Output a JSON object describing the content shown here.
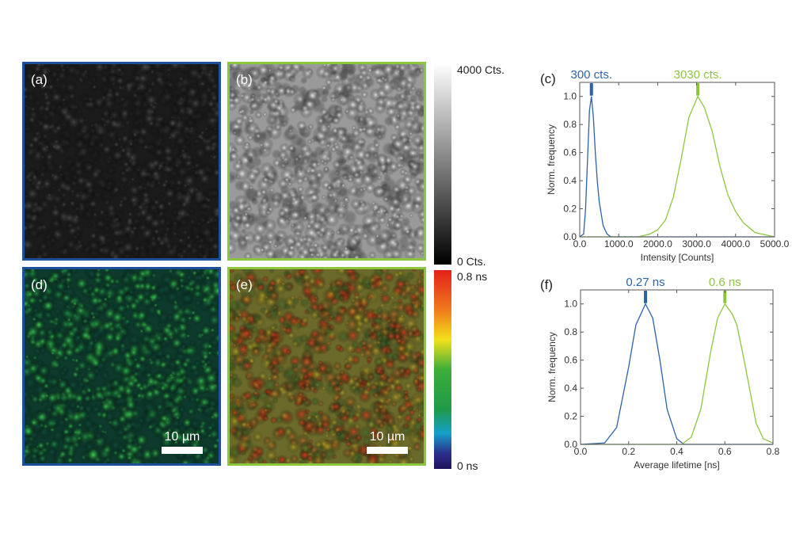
{
  "panels": {
    "a": {
      "label": "(a)"
    },
    "b": {
      "label": "(b)"
    },
    "d": {
      "label": "(d)",
      "scale_bar": "10 µm"
    },
    "e": {
      "label": "(e)",
      "scale_bar": "10 µm"
    }
  },
  "colorbars": {
    "intensity": {
      "max_label": "4000 Cts.",
      "min_label": "0 Cts."
    },
    "lifetime": {
      "max_label": "0.8 ns",
      "min_label": "0 ns"
    }
  },
  "colors": {
    "blue": "#2c62ad",
    "green": "#8cc63f",
    "blue_frame": "#1d4f9c",
    "green_frame": "#8cc63f"
  },
  "chart_data": [
    {
      "id": "c",
      "panel_label": "(c)",
      "type": "line",
      "xlabel": "Intensity [Counts]",
      "ylabel": "Norm. frequency",
      "xlim": [
        0,
        5000
      ],
      "ylim": [
        0,
        1.1
      ],
      "xticks": [
        "0.0",
        "1000.0",
        "2000.0",
        "3000.0",
        "4000.0",
        "5000.0"
      ],
      "xtick_values": [
        0,
        1000,
        2000,
        3000,
        4000,
        5000
      ],
      "yticks": [
        "0.0",
        "0.2",
        "0.4",
        "0.6",
        "0.8",
        "1.0"
      ],
      "ytick_values": [
        0,
        0.2,
        0.4,
        0.6,
        0.8,
        1.0
      ],
      "series": [
        {
          "name": "blue",
          "color": "#2c62ad",
          "peak_label": "300 cts.",
          "peak": 300,
          "x": [
            0,
            100,
            150,
            200,
            250,
            300,
            350,
            400,
            450,
            500,
            600,
            700,
            800,
            1000,
            5000
          ],
          "y": [
            0,
            0.02,
            0.2,
            0.55,
            0.9,
            1.0,
            0.85,
            0.6,
            0.4,
            0.25,
            0.08,
            0.02,
            0,
            0,
            0
          ]
        },
        {
          "name": "green",
          "color": "#8cc63f",
          "peak_label": "3030 cts.",
          "peak": 3030,
          "x": [
            0,
            1500,
            1800,
            2000,
            2200,
            2400,
            2600,
            2800,
            3030,
            3200,
            3400,
            3600,
            3800,
            4000,
            4200,
            4500,
            5000
          ],
          "y": [
            0,
            0,
            0.02,
            0.05,
            0.12,
            0.28,
            0.55,
            0.85,
            1.0,
            0.92,
            0.75,
            0.5,
            0.3,
            0.18,
            0.1,
            0.03,
            0
          ]
        }
      ]
    },
    {
      "id": "f",
      "panel_label": "(f)",
      "type": "line",
      "xlabel": "Average lifetime [ns]",
      "ylabel": "Norm. frequency",
      "xlim": [
        0,
        0.8
      ],
      "ylim": [
        0,
        1.1
      ],
      "xticks": [
        "0.0",
        "0.2",
        "0.4",
        "0.6",
        "0.8"
      ],
      "xtick_values": [
        0,
        0.2,
        0.4,
        0.6,
        0.8
      ],
      "yticks": [
        "0.0",
        "0.2",
        "0.4",
        "0.6",
        "0.8",
        "1.0"
      ],
      "ytick_values": [
        0,
        0.2,
        0.4,
        0.6,
        0.8,
        1.0
      ],
      "series": [
        {
          "name": "blue",
          "color": "#2c62ad",
          "peak_label": "0.27 ns",
          "peak": 0.27,
          "x": [
            0,
            0.1,
            0.15,
            0.2,
            0.23,
            0.27,
            0.3,
            0.33,
            0.36,
            0.4,
            0.43,
            0.8
          ],
          "y": [
            0,
            0.01,
            0.12,
            0.55,
            0.85,
            1.0,
            0.9,
            0.6,
            0.25,
            0.04,
            0,
            0
          ]
        },
        {
          "name": "green",
          "color": "#8cc63f",
          "peak_label": "0.6 ns",
          "peak": 0.6,
          "x": [
            0,
            0.42,
            0.46,
            0.5,
            0.54,
            0.57,
            0.6,
            0.63,
            0.65,
            0.68,
            0.7,
            0.73,
            0.76,
            0.8
          ],
          "y": [
            0,
            0,
            0.05,
            0.25,
            0.65,
            0.9,
            1.0,
            0.93,
            0.85,
            0.6,
            0.42,
            0.15,
            0.04,
            0.01
          ]
        }
      ]
    }
  ]
}
